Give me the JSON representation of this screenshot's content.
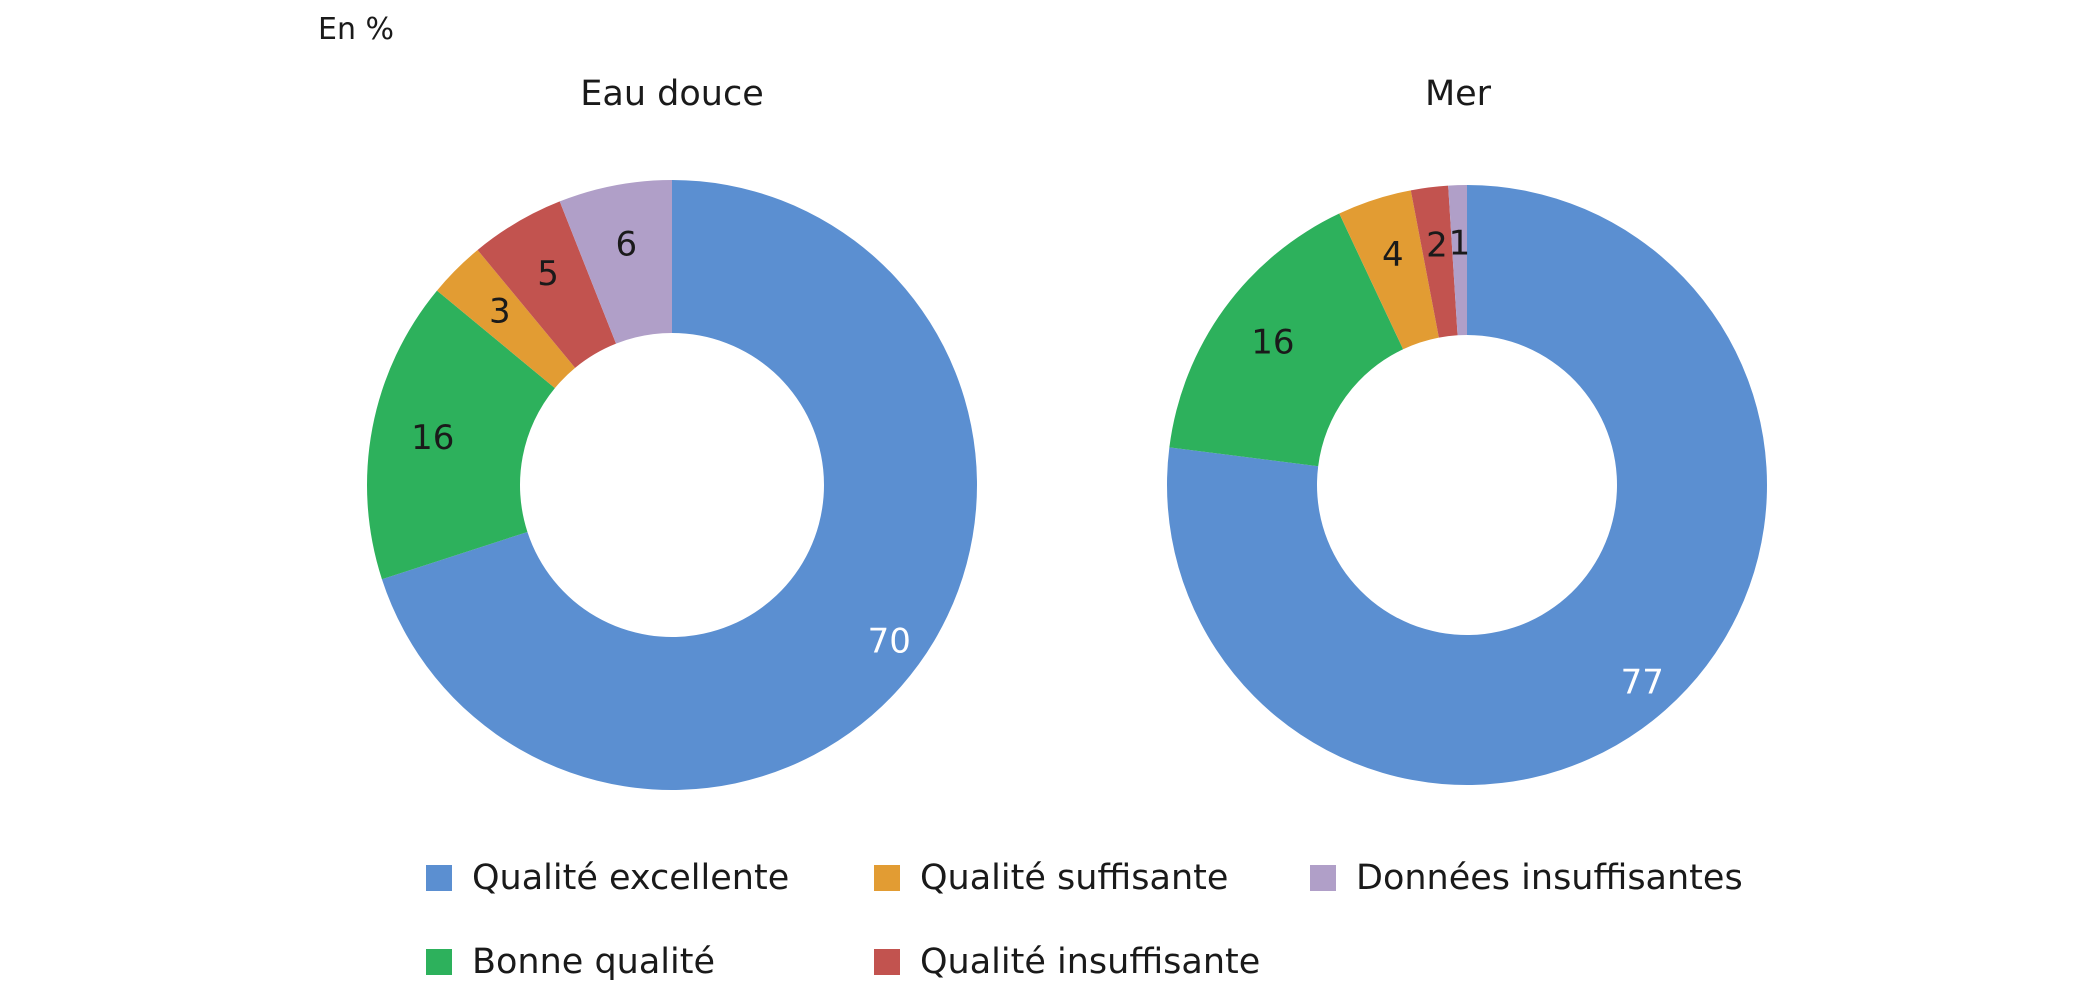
{
  "unit_label": "En %",
  "chart_data": [
    {
      "type": "pie",
      "title": "Eau douce",
      "categories": [
        "Qualité excellente",
        "Bonne qualité",
        "Qualité suffisante",
        "Qualité insuffisante",
        "Données insuffisantes"
      ],
      "values": [
        70,
        16,
        3,
        5,
        6
      ],
      "labels": [
        "70",
        "16",
        "3",
        "5",
        "6"
      ]
    },
    {
      "type": "pie",
      "title": "Mer",
      "categories": [
        "Qualité excellente",
        "Bonne qualité",
        "Qualité suffisante",
        "Qualité insuffisante",
        "Données insuffisantes"
      ],
      "values": [
        77,
        16,
        4,
        2,
        1
      ],
      "labels": [
        "77",
        "16",
        "4",
        "2",
        "1"
      ]
    }
  ],
  "legend": [
    {
      "label": "Qualité excellente",
      "color": "#5b8fd1"
    },
    {
      "label": "Qualité suffisante",
      "color": "#e29c33"
    },
    {
      "label": "Données insuffisantes",
      "color": "#b09fc8"
    },
    {
      "label": "Bonne qualité",
      "color": "#2db15c"
    },
    {
      "label": "Qualité insuffisante",
      "color": "#c2534f"
    }
  ],
  "colors": [
    "#5b8fd1",
    "#2db15c",
    "#e29c33",
    "#c2534f",
    "#b09fc8"
  ]
}
